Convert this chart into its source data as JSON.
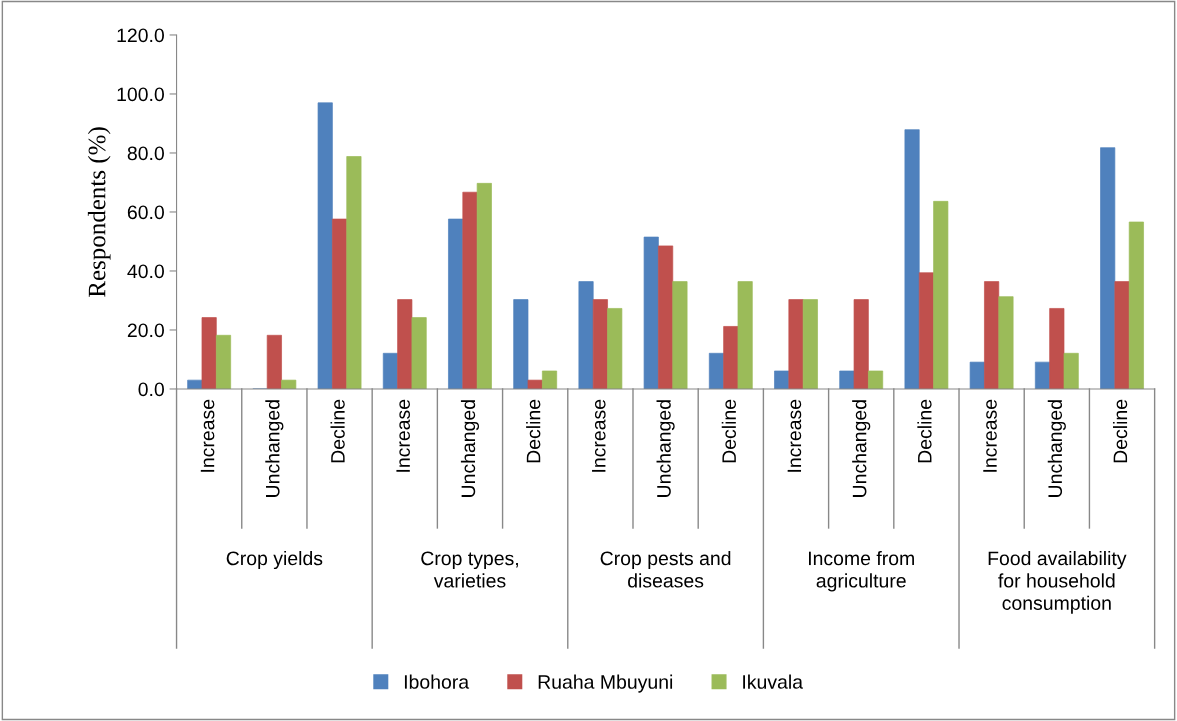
{
  "chart_data": {
    "type": "bar",
    "ylabel": "Respondents (%)",
    "categories": [
      "Increase",
      "Unchanged",
      "Decline",
      "Increase",
      "Unchanged",
      "Decline",
      "Increase",
      "Unchanged",
      "Decline",
      "Increase",
      "Unchanged",
      "Decline",
      "Increase",
      "Unchanged",
      "Decline"
    ],
    "annotations": [
      "Crop yields",
      "Crop types,\nvarieties",
      "Crop pests and\ndiseases",
      "Income from\nagriculture",
      "Food availability\nfor household\nconsumption"
    ],
    "series": [
      {
        "name": "Ibohora",
        "color": "#4f81bd",
        "values": [
          3.0,
          0.0,
          97.0,
          12.1,
          57.6,
          30.3,
          36.4,
          51.5,
          12.1,
          6.1,
          6.1,
          87.9,
          9.1,
          9.1,
          81.8
        ]
      },
      {
        "name": "Ruaha Mbuyuni",
        "color": "#c0504d",
        "values": [
          24.2,
          18.2,
          57.6,
          30.3,
          66.7,
          3.0,
          30.3,
          48.5,
          21.2,
          30.3,
          30.3,
          39.4,
          36.4,
          27.3,
          36.4
        ]
      },
      {
        "name": "Ikuvala",
        "color": "#9bbb59",
        "values": [
          18.2,
          3.0,
          78.8,
          24.2,
          69.7,
          6.1,
          27.3,
          36.4,
          36.4,
          30.3,
          6.1,
          63.6,
          31.3,
          12.1,
          56.6
        ]
      }
    ],
    "ylim": [
      0,
      120
    ],
    "yticks": [
      {
        "value": 0,
        "label": "0.0"
      },
      {
        "value": 20,
        "label": "20.0"
      },
      {
        "value": 40,
        "label": "40.0"
      },
      {
        "value": 60,
        "label": "60.0"
      },
      {
        "value": 80,
        "label": "80.0"
      },
      {
        "value": 100,
        "label": "100.0"
      },
      {
        "value": 120,
        "label": "120.0"
      }
    ],
    "grid": false,
    "legend": "bottom"
  }
}
